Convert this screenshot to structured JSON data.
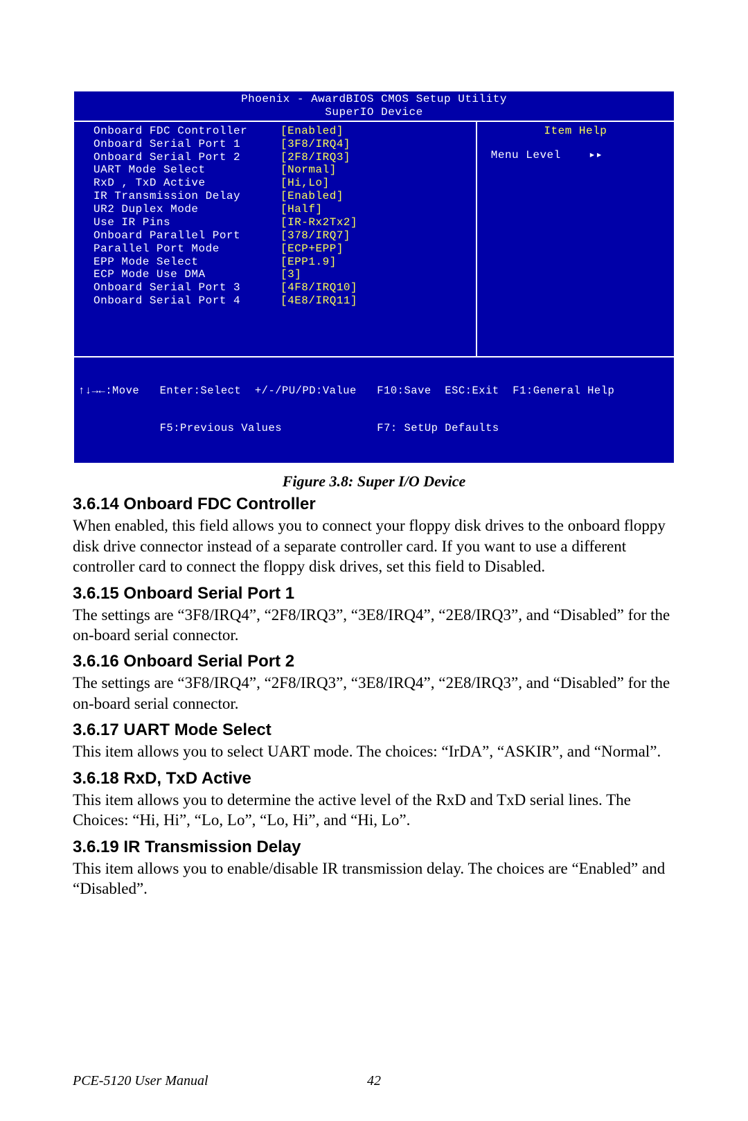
{
  "bios": {
    "title1": "Phoenix - AwardBIOS CMOS Setup Utility",
    "title2": "SuperIO Device",
    "rows": [
      {
        "label": "Onboard FDC Controller",
        "val": "[Enabled]",
        "hilite": true
      },
      {
        "label": "Onboard Serial Port 1",
        "val": "[3F8/IRQ4]"
      },
      {
        "label": "Onboard Serial Port 2",
        "val": "[2F8/IRQ3]"
      },
      {
        "label": "UART Mode Select",
        "val": "[Normal]"
      },
      {
        "label": "RxD , TxD Active",
        "val": "[Hi,Lo]"
      },
      {
        "label": "IR Transmission Delay",
        "val": "[Enabled]"
      },
      {
        "label": "UR2 Duplex Mode",
        "val": "[Half]"
      },
      {
        "label": "Use IR Pins",
        "val": "[IR-Rx2Tx2]"
      },
      {
        "label": "Onboard Parallel Port",
        "val": "[378/IRQ7]"
      },
      {
        "label": "Parallel Port Mode",
        "val": "[ECP+EPP]"
      },
      {
        "label": "EPP Mode Select",
        "val": "[EPP1.9]"
      },
      {
        "label": "ECP Mode Use DMA",
        "val": "[3]"
      },
      {
        "label": "Onboard Serial Port 3",
        "val": "[4F8/IRQ10]"
      },
      {
        "label": "Onboard Serial Port 4",
        "val": "[4E8/IRQ11]"
      }
    ],
    "help_title": "Item Help",
    "help_menu": "Menu Level    ▸▸",
    "footer1": "↑↓→←:Move   Enter:Select  +/-/PU/PD:Value   F10:Save  ESC:Exit  F1:General Help",
    "footer2": "            F5:Previous Values              F7: SetUp Defaults"
  },
  "figcaption": "Figure 3.8: Super I/O Device",
  "s1": {
    "h": "3.6.14 Onboard FDC Controller",
    "p": "When enabled, this field allows you to connect your floppy disk drives to the onboard floppy disk drive connector instead of a separate controller card. If you want to use a different controller card to connect the floppy disk drives, set this field to Disabled."
  },
  "s2": {
    "h": "3.6.15 Onboard Serial Port 1",
    "p": "The settings are “3F8/IRQ4”, “2F8/IRQ3”, “3E8/IRQ4”, “2E8/IRQ3”, and “Disabled” for the on-board serial connector."
  },
  "s3": {
    "h": "3.6.16 Onboard Serial Port 2",
    "p": "The settings are “3F8/IRQ4”, “2F8/IRQ3”, “3E8/IRQ4”, “2E8/IRQ3”, and “Disabled” for the on-board serial connector."
  },
  "s4": {
    "h": "3.6.17 UART Mode Select",
    "p": "This item allows you to select UART mode. The choices: “IrDA”, “ASKIR”, and “Normal”."
  },
  "s5": {
    "h": "3.6.18 RxD, TxD Active",
    "p": "This item allows you to determine the active level of the RxD and TxD serial lines. The Choices: “Hi, Hi”, “Lo, Lo”, “Lo, Hi”, and “Hi, Lo”."
  },
  "s6": {
    "h": "3.6.19 IR Transmission Delay",
    "p": "This item allows you to enable/disable IR transmission delay. The choices are “Enabled” and “Disabled”."
  },
  "footer_text": "PCE-5120 User Manual",
  "page_number": "42"
}
